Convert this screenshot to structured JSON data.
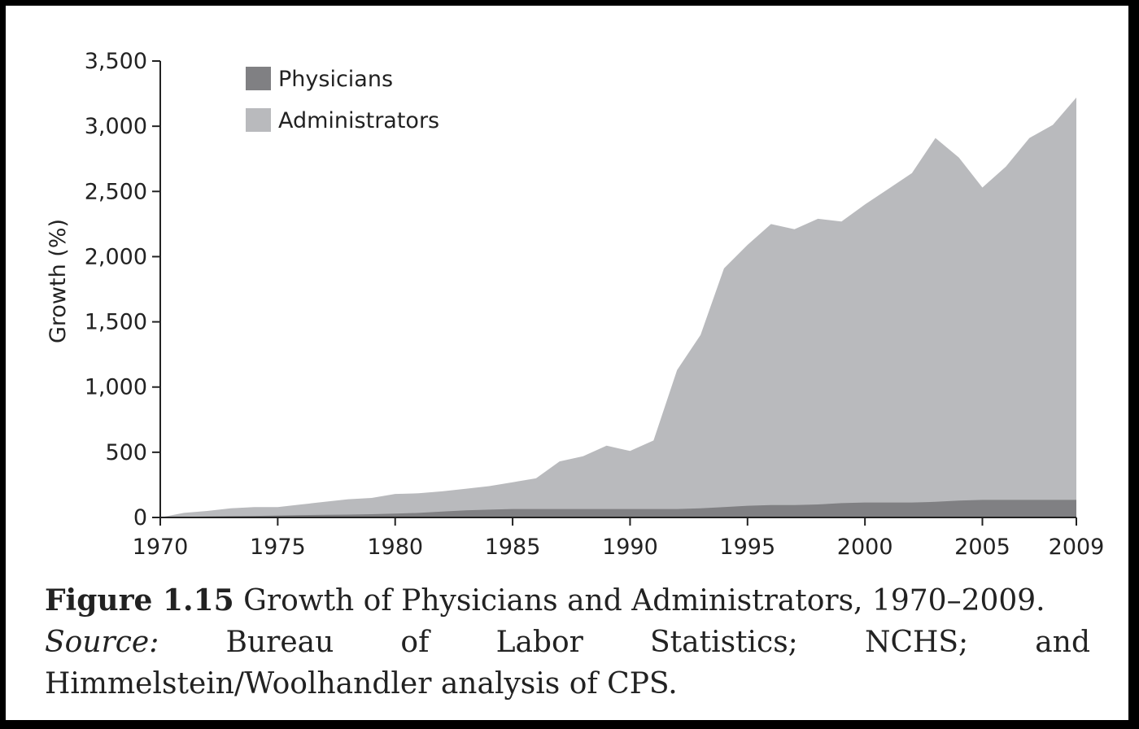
{
  "chart_data": {
    "type": "area",
    "stacked": false,
    "x": [
      1970,
      1971,
      1972,
      1973,
      1974,
      1975,
      1976,
      1977,
      1978,
      1979,
      1980,
      1981,
      1982,
      1983,
      1984,
      1985,
      1986,
      1987,
      1988,
      1989,
      1990,
      1991,
      1992,
      1993,
      1994,
      1995,
      1996,
      1997,
      1998,
      1999,
      2000,
      2001,
      2002,
      2003,
      2004,
      2005,
      2006,
      2007,
      2008,
      2009
    ],
    "series": [
      {
        "name": "Administrators",
        "color": "#b9babd",
        "values": [
          0,
          35,
          50,
          70,
          80,
          80,
          100,
          120,
          140,
          150,
          180,
          185,
          200,
          220,
          240,
          270,
          300,
          430,
          470,
          550,
          510,
          590,
          1130,
          1400,
          1910,
          2090,
          2250,
          2210,
          2290,
          2270,
          2400,
          2520,
          2640,
          2910,
          2760,
          2530,
          2690,
          2910,
          3010,
          3220
        ]
      },
      {
        "name": "Physicians",
        "color": "#808083",
        "values": [
          0,
          5,
          8,
          10,
          12,
          15,
          18,
          20,
          22,
          25,
          30,
          35,
          45,
          55,
          60,
          65,
          65,
          65,
          65,
          65,
          65,
          65,
          65,
          70,
          80,
          90,
          95,
          95,
          100,
          110,
          115,
          115,
          115,
          120,
          130,
          135,
          135,
          135,
          135,
          135
        ]
      }
    ],
    "xticks": [
      "1970",
      "1975",
      "1980",
      "1985",
      "1990",
      "1995",
      "2000",
      "2005",
      "2009"
    ],
    "yticks": [
      "0",
      "500",
      "1,000",
      "1,500",
      "2,000",
      "2,500",
      "3,000",
      "3,500"
    ],
    "ytick_values": [
      0,
      500,
      1000,
      1500,
      2000,
      2500,
      3000,
      3500
    ],
    "xlim": [
      1970,
      2009
    ],
    "ylim": [
      0,
      3500
    ],
    "xlabel": "",
    "ylabel": "Growth (%)",
    "legend": [
      "Physicians",
      "Administrators"
    ],
    "legend_position": "top-left",
    "grid": false
  },
  "caption": {
    "figure_label": "Figure 1.15",
    "title": "Growth of Physicians and Administrators, 1970–2009.",
    "source_label": "Source:",
    "source_line1": "Bureau of Labor Statistics; NCHS; and",
    "source_line2": "Himmelstein/Woolhandler analysis of CPS."
  }
}
